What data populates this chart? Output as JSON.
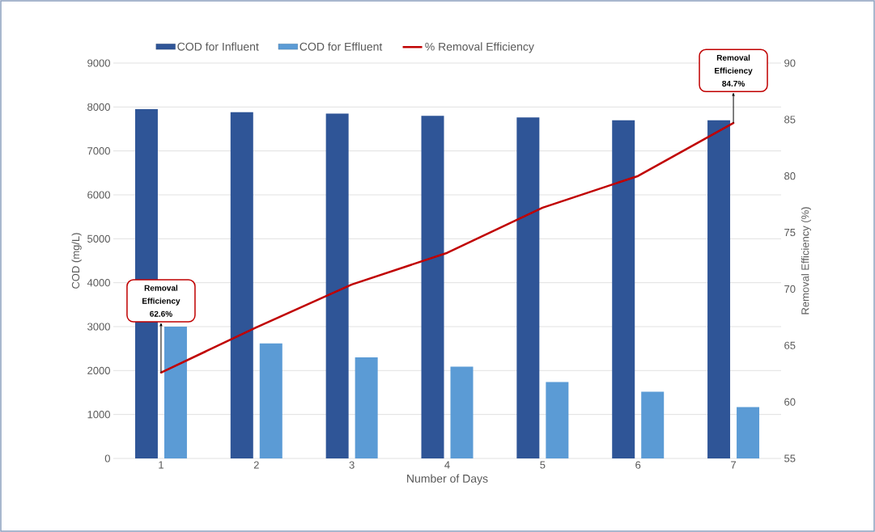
{
  "chart_data": {
    "type": "bar",
    "xlabel": "Number of Days",
    "ylabel": "COD (mg/L)",
    "y2label": "Removal Efficiency (%)",
    "categories": [
      "1",
      "2",
      "3",
      "4",
      "5",
      "6",
      "7"
    ],
    "series": [
      {
        "name": "COD for Influent",
        "color": "#2f5597",
        "values": [
          7950,
          7880,
          7850,
          7800,
          7760,
          7700,
          7700
        ]
      },
      {
        "name": "COD for Effluent",
        "color": "#5b9bd5",
        "values": [
          3000,
          2620,
          2300,
          2090,
          1740,
          1520,
          1170
        ]
      },
      {
        "name": "% Removal Efficiency",
        "color": "#c00000",
        "type": "line",
        "axis": "y2",
        "values": [
          62.6,
          66.6,
          70.4,
          73.2,
          77.2,
          80.0,
          84.7
        ]
      }
    ],
    "ylim": [
      0,
      9000
    ],
    "yticks": [
      0,
      1000,
      2000,
      3000,
      4000,
      5000,
      6000,
      7000,
      8000,
      9000
    ],
    "y2lim": [
      55,
      90
    ],
    "y2ticks": [
      55,
      60,
      65,
      70,
      75,
      80,
      85,
      90
    ],
    "grid": "y",
    "legend": "top",
    "marker": "none",
    "line_style": "solid",
    "annotations": [
      {
        "text": "Removal Efficiency 62.6%",
        "x": "1"
      },
      {
        "text": "Removal Efficiency 84.7%",
        "x": "7"
      }
    ]
  }
}
